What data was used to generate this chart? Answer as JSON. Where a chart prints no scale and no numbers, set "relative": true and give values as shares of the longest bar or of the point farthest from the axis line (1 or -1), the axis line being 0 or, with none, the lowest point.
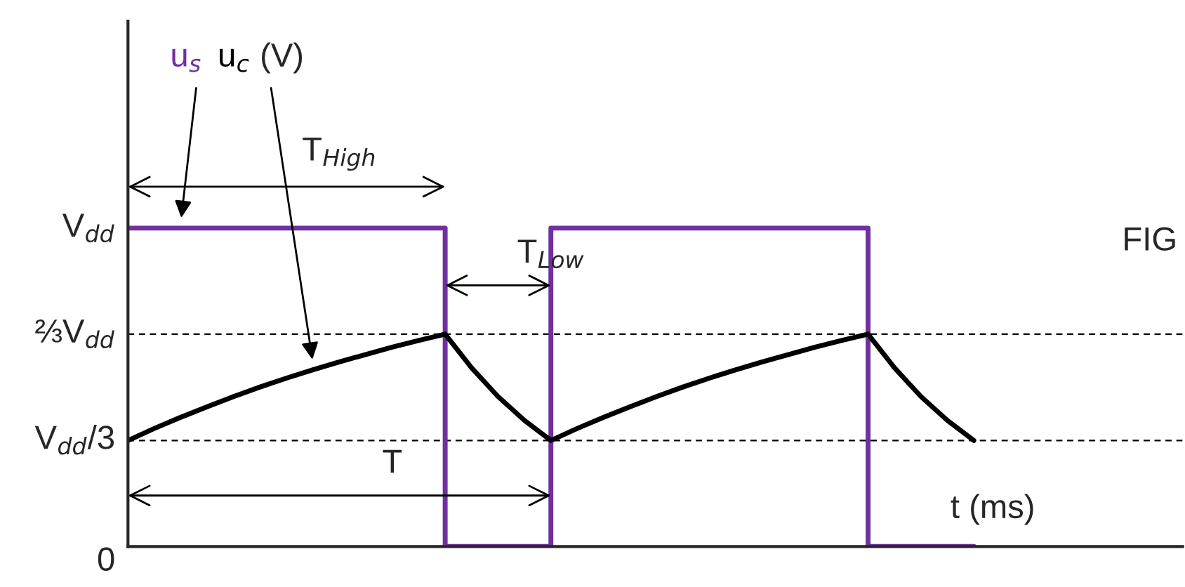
{
  "chart_data": {
    "type": "line",
    "relative": true,
    "xlabel": "t (ms)",
    "ylabel": "(V)",
    "categories": [
      null,
      null,
      null,
      null,
      null,
      null,
      null,
      null,
      null,
      null,
      null,
      null,
      null,
      null,
      null,
      null,
      null,
      null,
      null,
      null,
      null,
      null,
      null,
      null,
      null,
      null,
      null,
      null,
      null,
      null,
      null,
      null,
      null,
      null,
      null,
      null,
      null,
      null,
      null,
      null
    ],
    "series": [
      {
        "name": "u$_{s}$",
        "type": "step",
        "color": "#7030a0",
        "values": [
          1,
          1,
          1,
          1,
          1,
          1,
          1,
          1,
          1,
          1,
          1,
          1,
          0,
          0,
          0,
          0,
          1,
          1,
          1,
          1,
          1,
          1,
          1,
          1,
          1,
          1,
          1,
          1,
          0,
          0,
          0,
          0,
          0,
          null,
          null,
          null,
          null,
          null,
          null,
          null
        ]
      },
      {
        "name": "u$_{c}$",
        "color": "#000000",
        "values": [
          0.333,
          0.371,
          0.406,
          0.439,
          0.471,
          0.501,
          0.529,
          0.555,
          0.58,
          0.603,
          0.626,
          0.647,
          0.667,
          0.561,
          0.471,
          0.396,
          0.333,
          0.371,
          0.406,
          0.439,
          0.471,
          0.501,
          0.529,
          0.555,
          0.58,
          0.603,
          0.626,
          0.647,
          0.667,
          0.561,
          0.471,
          0.396,
          0.333,
          null,
          null,
          null,
          null,
          null,
          null,
          null
        ]
      }
    ],
    "ref_lines": [
      {
        "axis": "y",
        "value": 0.333,
        "color": "#000000",
        "line_style": "dashed"
      },
      {
        "axis": "y",
        "value": 0.667,
        "color": "#000000",
        "line_style": "dashed"
      }
    ],
    "annotations": [
      "V$_{dd}$",
      "⅔V$_{dd}$",
      "V$_{dd}$/3",
      "0",
      "T$_{High}$",
      "T$_{Low}$",
      "T",
      "FIG"
    ]
  }
}
